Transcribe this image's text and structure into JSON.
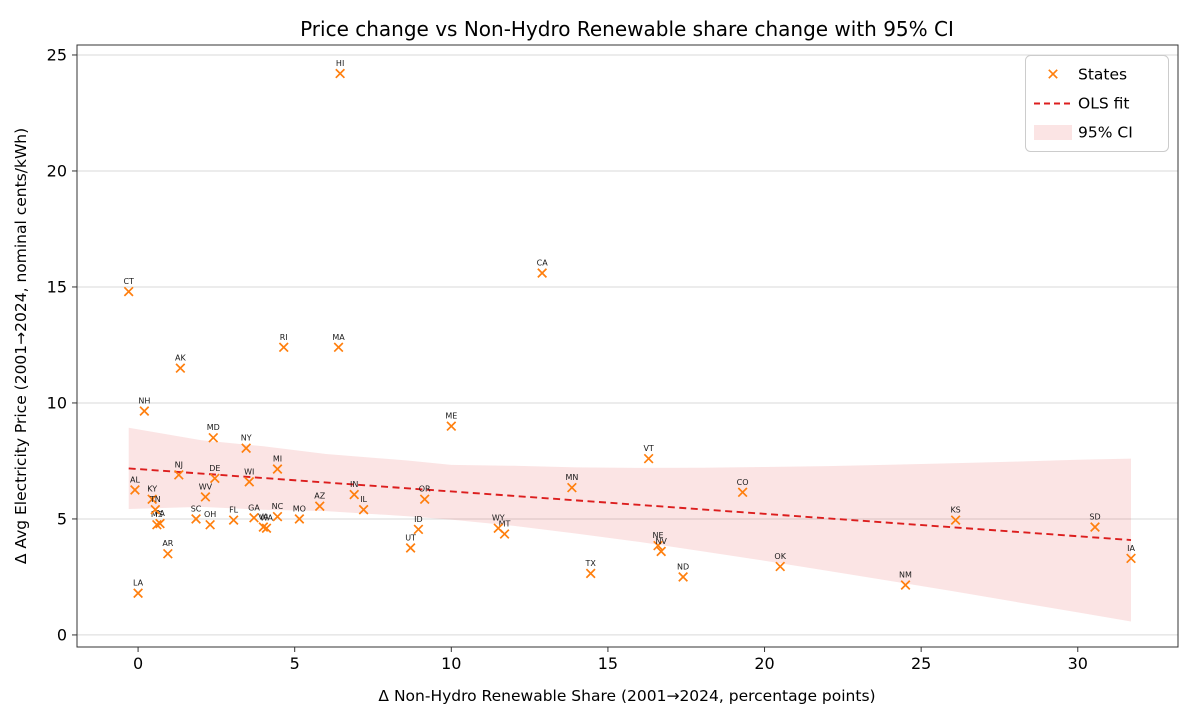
{
  "chart_data": {
    "type": "scatter",
    "title": "Price change vs Non-Hydro Renewable share change with 95% CI",
    "xlabel": "Δ Non-Hydro Renewable Share (2001→2024, percentage points)",
    "ylabel": "Δ Avg Electricity Price (2001→2024, nominal cents/kWh)",
    "xlim": [
      -1.95,
      33.2
    ],
    "ylim": [
      -0.52,
      25.43
    ],
    "xticks": [
      0,
      5,
      10,
      15,
      20,
      25,
      30
    ],
    "yticks": [
      0,
      5,
      10,
      15,
      20,
      25
    ],
    "grid": "horizontal",
    "colors": {
      "marker": "#ff7f0e",
      "ols_line": "#dc1e1e",
      "ci_fill": "rgba(220,30,36,0.12)",
      "gridline": "#d9d9d9",
      "spine": "#333333"
    },
    "legend": {
      "position": "upper right",
      "entries": [
        {
          "label": "States",
          "type": "marker"
        },
        {
          "label": "OLS fit",
          "type": "dashed-line"
        },
        {
          "label": "95% CI",
          "type": "filled-band"
        }
      ]
    },
    "points": [
      {
        "state": "AL",
        "x": -0.1,
        "y": 6.25
      },
      {
        "state": "AK",
        "x": 1.35,
        "y": 11.5
      },
      {
        "state": "AZ",
        "x": 5.8,
        "y": 5.55
      },
      {
        "state": "AR",
        "x": 0.95,
        "y": 3.5
      },
      {
        "state": "CA",
        "x": 12.9,
        "y": 15.6
      },
      {
        "state": "CO",
        "x": 19.3,
        "y": 6.15
      },
      {
        "state": "CT",
        "x": -0.3,
        "y": 14.8
      },
      {
        "state": "DE",
        "x": 2.45,
        "y": 6.75
      },
      {
        "state": "FL",
        "x": 3.05,
        "y": 4.95
      },
      {
        "state": "GA",
        "x": 3.7,
        "y": 5.05
      },
      {
        "state": "HI",
        "x": 6.45,
        "y": 24.2
      },
      {
        "state": "ID",
        "x": 8.95,
        "y": 4.55
      },
      {
        "state": "IL",
        "x": 7.2,
        "y": 5.4
      },
      {
        "state": "IN",
        "x": 6.9,
        "y": 6.05
      },
      {
        "state": "IA",
        "x": 31.7,
        "y": 3.3
      },
      {
        "state": "KS",
        "x": 26.1,
        "y": 4.95
      },
      {
        "state": "KY",
        "x": 0.45,
        "y": 5.85
      },
      {
        "state": "LA",
        "x": 0.0,
        "y": 1.8
      },
      {
        "state": "ME",
        "x": 10.0,
        "y": 9.0
      },
      {
        "state": "MD",
        "x": 2.4,
        "y": 8.5
      },
      {
        "state": "MA",
        "x": 6.4,
        "y": 12.4
      },
      {
        "state": "MI",
        "x": 4.45,
        "y": 7.15
      },
      {
        "state": "MN",
        "x": 13.85,
        "y": 6.35
      },
      {
        "state": "MS",
        "x": 0.6,
        "y": 4.75
      },
      {
        "state": "MO",
        "x": 5.15,
        "y": 5.0
      },
      {
        "state": "MT",
        "x": 11.7,
        "y": 4.35
      },
      {
        "state": "NE",
        "x": 16.6,
        "y": 3.85
      },
      {
        "state": "NV",
        "x": 16.7,
        "y": 3.6
      },
      {
        "state": "NH",
        "x": 0.2,
        "y": 9.65
      },
      {
        "state": "NJ",
        "x": 1.3,
        "y": 6.9
      },
      {
        "state": "NM",
        "x": 24.5,
        "y": 2.15
      },
      {
        "state": "NY",
        "x": 3.45,
        "y": 8.05
      },
      {
        "state": "NC",
        "x": 4.45,
        "y": 5.1
      },
      {
        "state": "ND",
        "x": 17.4,
        "y": 2.5
      },
      {
        "state": "OH",
        "x": 2.3,
        "y": 4.75
      },
      {
        "state": "OK",
        "x": 20.5,
        "y": 2.95
      },
      {
        "state": "OR",
        "x": 9.15,
        "y": 5.85
      },
      {
        "state": "PA",
        "x": 0.7,
        "y": 4.8
      },
      {
        "state": "RI",
        "x": 4.65,
        "y": 12.4
      },
      {
        "state": "SC",
        "x": 1.85,
        "y": 5.0
      },
      {
        "state": "SD",
        "x": 30.55,
        "y": 4.65
      },
      {
        "state": "TN",
        "x": 0.55,
        "y": 5.4
      },
      {
        "state": "TX",
        "x": 14.45,
        "y": 2.65
      },
      {
        "state": "UT",
        "x": 8.7,
        "y": 3.75
      },
      {
        "state": "VT",
        "x": 16.3,
        "y": 7.6
      },
      {
        "state": "VA",
        "x": 4.0,
        "y": 4.65
      },
      {
        "state": "WA",
        "x": 4.1,
        "y": 4.6
      },
      {
        "state": "WV",
        "x": 2.15,
        "y": 5.95
      },
      {
        "state": "WI",
        "x": 3.55,
        "y": 6.6
      },
      {
        "state": "WY",
        "x": 11.5,
        "y": 4.6
      }
    ],
    "ols_fit": {
      "slope": -0.0965,
      "intercept": 7.15,
      "x_start": -0.3,
      "x_end": 31.7
    },
    "ci_band": {
      "x": [
        -0.3,
        2.0,
        4.0,
        6.0,
        8.6,
        10.0,
        12.0,
        14.0,
        16.0,
        18.0,
        20.0,
        22.0,
        24.0,
        26.0,
        28.0,
        30.0,
        31.7
      ],
      "upper": [
        8.93,
        8.4,
        8.13,
        7.8,
        7.52,
        7.33,
        7.29,
        7.22,
        7.2,
        7.21,
        7.24,
        7.28,
        7.34,
        7.4,
        7.47,
        7.55,
        7.6
      ],
      "lower": [
        5.43,
        5.52,
        5.4,
        5.34,
        5.12,
        4.97,
        4.7,
        4.37,
        4.01,
        3.61,
        3.2,
        2.77,
        2.33,
        1.89,
        1.43,
        0.97,
        0.58
      ]
    }
  }
}
